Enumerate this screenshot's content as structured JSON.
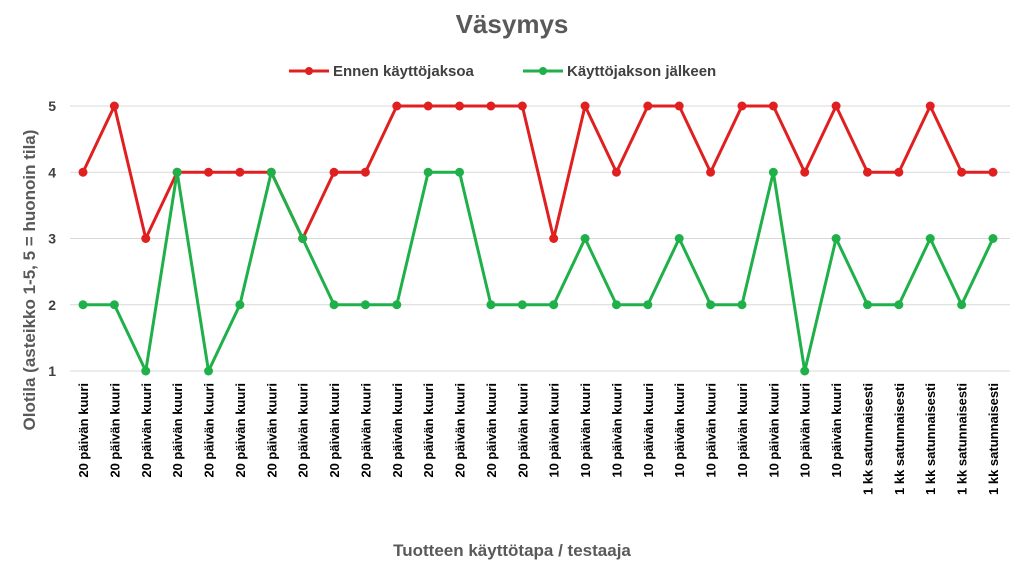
{
  "chart_data": {
    "type": "line",
    "title": "Väsymys",
    "xlabel": "Tuotteen käyttötapa / testaaja",
    "ylabel": "Olotila (asteikko 1-5, 5 = huonoin tila)",
    "ylim": [
      1,
      5
    ],
    "yticks": [
      1,
      2,
      3,
      4,
      5
    ],
    "grid": true,
    "legend_position": "top",
    "categories": [
      "20 päivän kuuri",
      "20 päivän kuuri",
      "20 päivän kuuri",
      "20 päivän kuuri",
      "20 päivän kuuri",
      "20 päivän kuuri",
      "20 päivän kuuri",
      "20 päivän kuuri",
      "20 päivän kuuri",
      "20 päivän kuuri",
      "20 päivän kuuri",
      "20 päivän kuuri",
      "20 päivän kuuri",
      "20 päivän kuuri",
      "20 päivän kuuri",
      "10 päivän kuuri",
      "10 päivän kuuri",
      "10 päivän kuuri",
      "10 päivän kuuri",
      "10 päivän kuuri",
      "10 päivän kuuri",
      "10 päivän kuuri",
      "10 päivän kuuri",
      "10 päivän kuuri",
      "10 päivän kuuri",
      "1 kk satunnaisesti",
      "1 kk satunnaisesti",
      "1 kk satunnaisesti",
      "1 kk satunnaisesti",
      "1 kk satunnaisesti"
    ],
    "series": [
      {
        "name": "Ennen käyttöjaksoa",
        "color": "#e02020",
        "values": [
          4,
          5,
          3,
          4,
          4,
          4,
          4,
          3,
          4,
          4,
          5,
          5,
          5,
          5,
          5,
          3,
          5,
          4,
          5,
          5,
          4,
          5,
          5,
          4,
          5,
          4,
          4,
          5,
          4,
          4
        ]
      },
      {
        "name": "Käyttöjakson jälkeen",
        "color": "#1fb04a",
        "values": [
          2,
          2,
          1,
          4,
          1,
          2,
          4,
          3,
          2,
          2,
          2,
          4,
          4,
          2,
          2,
          2,
          3,
          2,
          2,
          3,
          2,
          2,
          4,
          1,
          3,
          2,
          2,
          3,
          2,
          3
        ]
      }
    ]
  }
}
